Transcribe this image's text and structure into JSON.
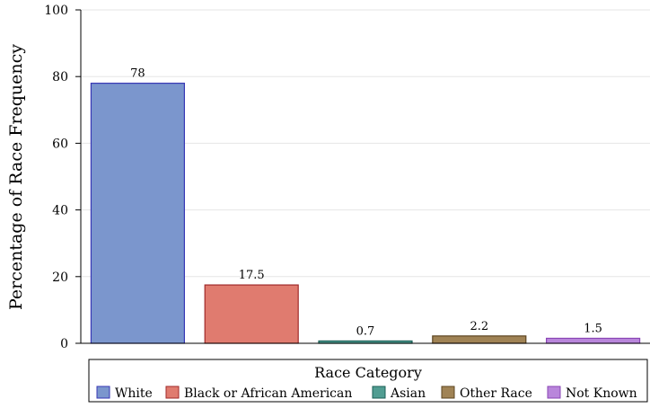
{
  "chart_data": {
    "type": "bar",
    "title": "",
    "xlabel": "",
    "ylabel": "Percentage of Race Frequency",
    "ylim": [
      0,
      100
    ],
    "yticks": [
      0,
      20,
      40,
      60,
      80,
      100
    ],
    "grid": true,
    "legend_position": "bottom",
    "categories": [
      "White",
      "Black or African American",
      "Asian",
      "Other Race",
      "Not Known"
    ],
    "values": [
      78,
      17.5,
      0.7,
      2.2,
      1.5
    ],
    "value_labels": [
      "78",
      "17.5",
      "0.7",
      "2.2",
      "1.5"
    ],
    "colors": [
      "#7b96cd",
      "#e07b6f",
      "#519d92",
      "#a08355",
      "#b986db"
    ],
    "edge_colors": [
      "#3737b5",
      "#a02a2a",
      "#1a5e55",
      "#5c4420",
      "#8a45b5"
    ],
    "legend": {
      "title": "Race Category",
      "entries": [
        "White",
        "Black or African American",
        "Asian",
        "Other Race",
        "Not Known"
      ]
    }
  }
}
